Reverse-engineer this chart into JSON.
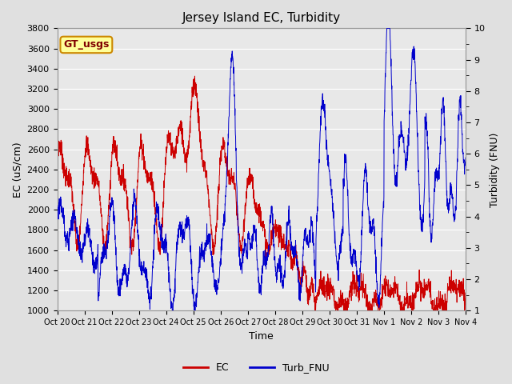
{
  "title": "Jersey Island EC, Turbidity",
  "xlabel": "Time",
  "ylabel_left": "EC (uS/cm)",
  "ylabel_right": "Turbidity (FNU)",
  "ylim_left": [
    1000,
    3800
  ],
  "ylim_right": [
    1.0,
    10.0
  ],
  "yticks_left": [
    1000,
    1200,
    1400,
    1600,
    1800,
    2000,
    2200,
    2400,
    2600,
    2800,
    3000,
    3200,
    3400,
    3600,
    3800
  ],
  "yticks_right": [
    1.0,
    2.0,
    3.0,
    4.0,
    5.0,
    6.0,
    7.0,
    8.0,
    9.0,
    10.0
  ],
  "yticks_right_minor": [
    1.5,
    2.5,
    3.5,
    4.5,
    5.5,
    6.5,
    7.5,
    8.5,
    9.5
  ],
  "ec_color": "#cc0000",
  "turb_color": "#0000cc",
  "background_color": "#e0e0e0",
  "plot_bg_color": "#e8e8e8",
  "grid_color": "#ffffff",
  "legend_label_ec": "EC",
  "legend_label_turb": "Turb_FNU",
  "annotation_text": "GT_usgs",
  "annotation_bg": "#ffff99",
  "annotation_border": "#cc8800",
  "title_fontsize": 11,
  "axis_fontsize": 9,
  "tick_fontsize": 8,
  "n_points": 2160,
  "x_start": 0,
  "x_end": 15.0,
  "xtick_positions": [
    0,
    1,
    2,
    3,
    4,
    5,
    6,
    7,
    8,
    9,
    10,
    11,
    12,
    13,
    14,
    15
  ],
  "xtick_labels": [
    "Oct 20",
    "Oct 21",
    "Oct 22",
    "Oct 23",
    "Oct 24",
    "Oct 25",
    "Oct 26",
    "Oct 27",
    "Oct 28",
    "Oct 29",
    "Oct 30",
    "Oct 31",
    "Nov 1",
    "Nov 2",
    "Nov 3",
    "Nov 4"
  ]
}
